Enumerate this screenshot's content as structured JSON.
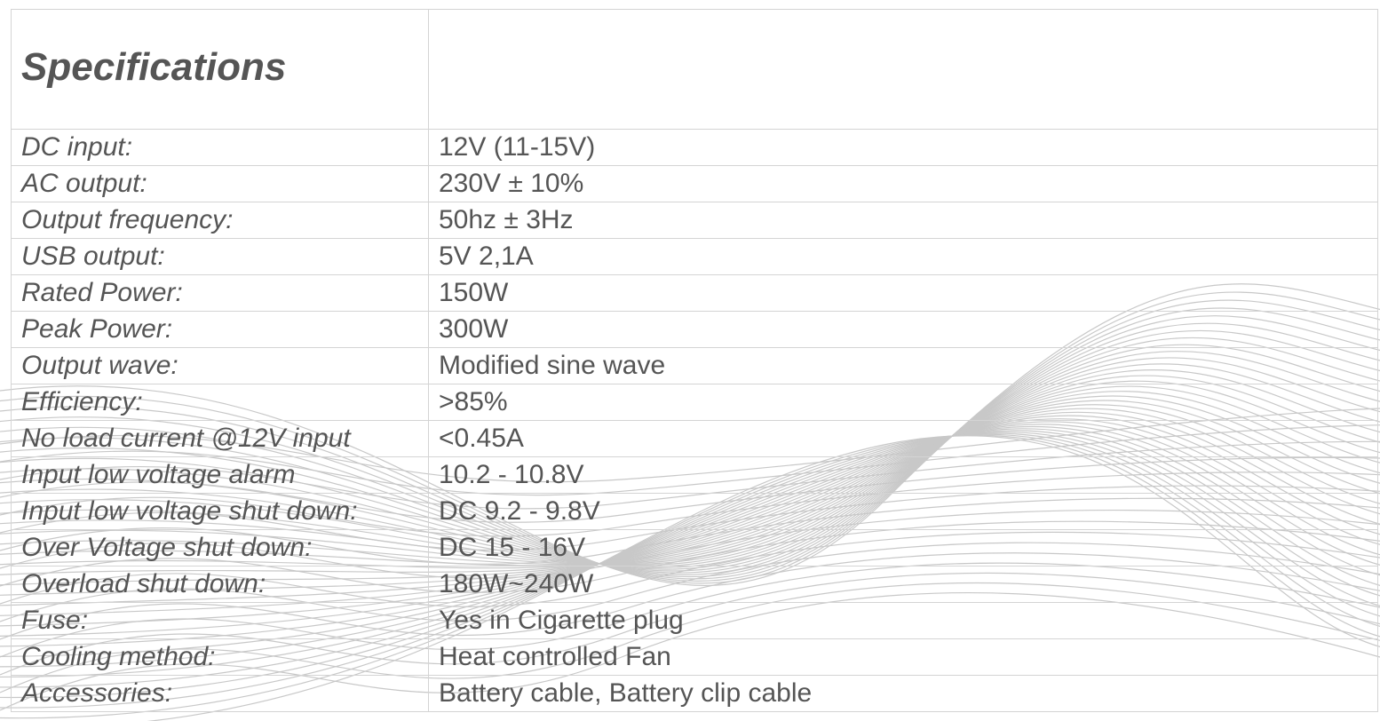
{
  "header": {
    "title": "Specifications"
  },
  "table": {
    "rows": [
      [
        "DC input:",
        "12V (11-15V)"
      ],
      [
        "AC output:",
        "230V ± 10%"
      ],
      [
        "Output frequency:",
        "50hz ± 3Hz"
      ],
      [
        "USB output:",
        "5V 2,1A"
      ],
      [
        "Rated Power:",
        "150W"
      ],
      [
        "Peak Power:",
        "300W"
      ],
      [
        "Output wave:",
        "Modified sine wave"
      ],
      [
        "Efficiency:",
        ">85%"
      ],
      [
        "No load current @12V input",
        "<0.45A"
      ],
      [
        "Input low voltage alarm",
        "10.2 - 10.8V"
      ],
      [
        "Input low voltage shut down:",
        "DC 9.2 - 9.8V"
      ],
      [
        "Over Voltage shut down:",
        "DC 15 - 16V"
      ],
      [
        "Overload shut down:",
        "180W~240W"
      ],
      [
        "Fuse:",
        "Yes in Cigarette plug"
      ],
      [
        "Cooling method:",
        "Heat controlled Fan"
      ],
      [
        "Accessories:",
        "Battery cable, Battery clip cable"
      ]
    ]
  }
}
